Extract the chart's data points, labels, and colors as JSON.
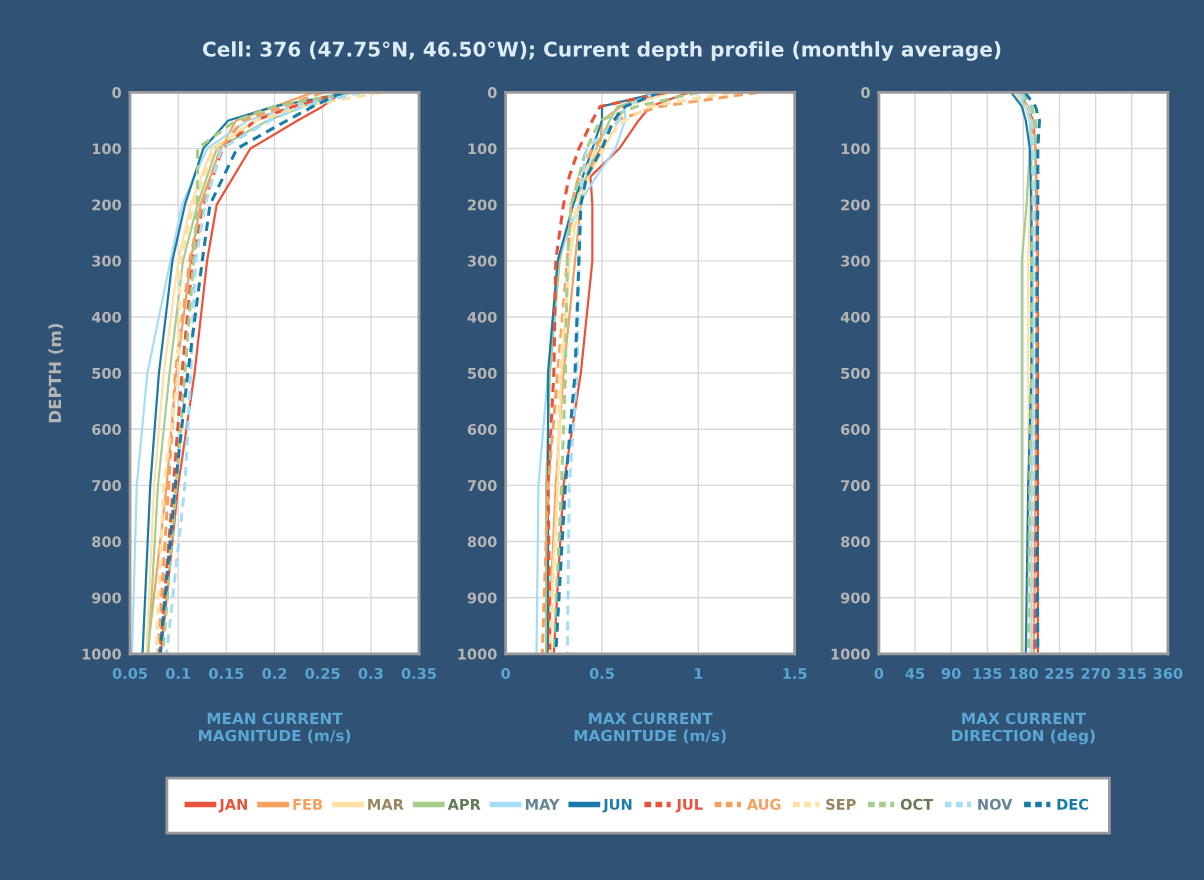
{
  "chart_data": [
    {
      "type": "line",
      "title": "Cell: 376 (47.75°N, 46.50°W); Current depth profile (monthly average)",
      "xlabel": "MEAN CURRENT\nMAGNITUDE (m/s)",
      "ylabel": "DEPTH (m)",
      "xlim": [
        0.05,
        0.35
      ],
      "xticks": [
        0.05,
        0.1,
        0.15,
        0.2,
        0.25,
        0.3,
        0.35
      ],
      "ylim": [
        1000,
        0
      ],
      "yticks": [
        0,
        100,
        200,
        300,
        400,
        500,
        600,
        700,
        800,
        900,
        1000
      ],
      "grid": true,
      "legend": "bottom",
      "series": [
        {
          "name": "JAN",
          "color": "#e8533a",
          "line_style": "solid",
          "x": [
            0.27,
            0.25,
            0.224,
            0.175,
            0.14,
            0.13,
            0.117,
            0.1,
            0.082
          ],
          "values": [
            0,
            25,
            50,
            100,
            200,
            300,
            500,
            700,
            1000
          ]
        },
        {
          "name": "FEB",
          "color": "#f5a05f",
          "line_style": "solid",
          "x": [
            0.24,
            0.2,
            0.16,
            0.144,
            0.123,
            0.113,
            0.098,
            0.088,
            0.068
          ],
          "values": [
            0,
            25,
            50,
            100,
            200,
            300,
            500,
            700,
            1000
          ]
        },
        {
          "name": "MAR",
          "color": "#fde0a3",
          "line_style": "solid",
          "x": [
            0.27,
            0.22,
            0.18,
            0.135,
            0.113,
            0.1,
            0.085,
            0.075,
            0.067
          ],
          "values": [
            0,
            25,
            50,
            100,
            200,
            300,
            500,
            700,
            1000
          ]
        },
        {
          "name": "APR",
          "color": "#a8cc8c",
          "line_style": "solid",
          "x": [
            0.27,
            0.23,
            0.193,
            0.14,
            0.12,
            0.105,
            0.091,
            0.079,
            0.069
          ],
          "values": [
            0,
            25,
            50,
            100,
            200,
            300,
            500,
            700,
            1000
          ]
        },
        {
          "name": "MAY",
          "color": "#a6dcf5",
          "line_style": "solid",
          "x": [
            0.28,
            0.22,
            0.172,
            0.13,
            0.104,
            0.092,
            0.068,
            0.057,
            0.052
          ],
          "values": [
            0,
            25,
            50,
            100,
            200,
            300,
            500,
            700,
            1000
          ]
        },
        {
          "name": "JUN",
          "color": "#1b7ba8",
          "line_style": "solid",
          "x": [
            0.28,
            0.2,
            0.152,
            0.126,
            0.107,
            0.094,
            0.08,
            0.071,
            0.063
          ],
          "values": [
            0,
            25,
            50,
            100,
            200,
            300,
            500,
            700,
            1000
          ]
        },
        {
          "name": "JUL",
          "color": "#e8533a",
          "line_style": "dashed",
          "x": [
            0.27,
            0.22,
            0.18,
            0.146,
            0.126,
            0.115,
            0.104,
            0.095,
            0.081
          ],
          "values": [
            0,
            25,
            50,
            100,
            200,
            300,
            500,
            700,
            1000
          ]
        },
        {
          "name": "AUG",
          "color": "#f5a05f",
          "line_style": "dashed",
          "x": [
            0.25,
            0.21,
            0.167,
            0.144,
            0.124,
            0.112,
            0.097,
            0.09,
            0.079
          ],
          "values": [
            0,
            25,
            50,
            100,
            200,
            300,
            500,
            700,
            1000
          ]
        },
        {
          "name": "SEP",
          "color": "#fde0a3",
          "line_style": "dashed",
          "x": [
            0.31,
            0.23,
            0.18,
            0.137,
            0.116,
            0.102,
            0.1,
            0.085,
            0.077
          ],
          "values": [
            0,
            25,
            50,
            100,
            200,
            300,
            500,
            700,
            1000
          ]
        },
        {
          "name": "OCT",
          "color": "#a8cc8c",
          "line_style": "dashed",
          "x": [
            0.28,
            0.2,
            0.16,
            0.12,
            0.12,
            0.116,
            0.107,
            0.098,
            0.084
          ],
          "values": [
            0,
            25,
            50,
            100,
            200,
            300,
            500,
            700,
            1000
          ]
        },
        {
          "name": "NOV",
          "color": "#a6dcf5",
          "line_style": "dashed",
          "x": [
            0.29,
            0.23,
            0.195,
            0.145,
            0.128,
            0.118,
            0.113,
            0.107,
            0.088
          ],
          "values": [
            0,
            25,
            50,
            100,
            200,
            300,
            500,
            700,
            1000
          ]
        },
        {
          "name": "DEC",
          "color": "#1b7ba8",
          "line_style": "dashed",
          "x": [
            0.27,
            0.24,
            0.213,
            0.161,
            0.133,
            0.125,
            0.11,
            0.097,
            0.081
          ],
          "values": [
            0,
            25,
            50,
            100,
            200,
            300,
            500,
            700,
            1000
          ]
        }
      ]
    },
    {
      "type": "line",
      "xlabel": "MAX CURRENT\nMAGNITUDE (m/s)",
      "xlim": [
        0,
        1.5
      ],
      "xticks": [
        0,
        0.5,
        1,
        1.5
      ],
      "ylim": [
        1000,
        0
      ],
      "yticks": [
        0,
        100,
        200,
        300,
        400,
        500,
        600,
        700,
        800,
        900,
        1000
      ],
      "grid": true,
      "series": [
        {
          "color": "#e8533a",
          "line_style": "solid",
          "x": [
            0.95,
            0.75,
            0.69,
            0.59,
            0.44,
            0.45,
            0.45,
            0.39,
            0.3,
            0.25
          ],
          "values": [
            0,
            25,
            50,
            100,
            150,
            200,
            300,
            500,
            700,
            1000
          ]
        },
        {
          "color": "#f5a05f",
          "line_style": "solid",
          "x": [
            0.81,
            0.6,
            0.5,
            0.49,
            0.42,
            0.39,
            0.36,
            0.3,
            0.26,
            0.22
          ],
          "values": [
            0,
            25,
            50,
            100,
            150,
            200,
            300,
            500,
            700,
            1000
          ]
        },
        {
          "color": "#fde0a3",
          "line_style": "solid",
          "x": [
            0.86,
            0.62,
            0.59,
            0.51,
            0.43,
            0.38,
            0.33,
            0.29,
            0.27,
            0.22
          ],
          "values": [
            0,
            25,
            50,
            100,
            150,
            200,
            300,
            500,
            700,
            1000
          ]
        },
        {
          "color": "#a8cc8c",
          "line_style": "solid",
          "x": [
            0.8,
            0.58,
            0.54,
            0.47,
            0.42,
            0.35,
            0.28,
            0.23,
            0.21,
            0.21
          ],
          "values": [
            0,
            25,
            50,
            100,
            150,
            200,
            300,
            500,
            700,
            1000
          ]
        },
        {
          "color": "#a6dcf5",
          "line_style": "solid",
          "x": [
            0.76,
            0.62,
            0.62,
            0.57,
            0.47,
            0.38,
            0.27,
            0.22,
            0.17,
            0.16
          ],
          "values": [
            0,
            25,
            50,
            100,
            150,
            200,
            300,
            500,
            700,
            1000
          ]
        },
        {
          "color": "#1b7ba8",
          "line_style": "solid",
          "x": [
            0.8,
            0.5,
            0.5,
            0.45,
            0.4,
            0.35,
            0.27,
            0.22,
            0.22,
            0.22
          ],
          "values": [
            0,
            25,
            50,
            100,
            150,
            200,
            300,
            500,
            700,
            1000
          ]
        },
        {
          "color": "#e8533a",
          "line_style": "dashed",
          "x": [
            0.83,
            0.49,
            0.45,
            0.38,
            0.33,
            0.3,
            0.26,
            0.25,
            0.22,
            0.23
          ],
          "values": [
            0,
            25,
            50,
            100,
            150,
            200,
            300,
            500,
            700,
            1000
          ]
        },
        {
          "color": "#f5a05f",
          "line_style": "dashed",
          "x": [
            1.31,
            0.8,
            0.57,
            0.45,
            0.38,
            0.34,
            0.32,
            0.27,
            0.22,
            0.19
          ],
          "values": [
            0,
            25,
            50,
            100,
            150,
            200,
            300,
            500,
            700,
            1000
          ]
        },
        {
          "color": "#fde0a3",
          "line_style": "dashed",
          "x": [
            1.17,
            0.75,
            0.62,
            0.47,
            0.4,
            0.37,
            0.33,
            0.28,
            0.27,
            0.23
          ],
          "values": [
            0,
            25,
            50,
            100,
            150,
            200,
            300,
            500,
            700,
            1000
          ]
        },
        {
          "color": "#a8cc8c",
          "line_style": "dashed",
          "x": [
            1.0,
            0.68,
            0.49,
            0.42,
            0.38,
            0.34,
            0.32,
            0.31,
            0.29,
            0.25
          ],
          "values": [
            0,
            25,
            50,
            100,
            150,
            200,
            300,
            500,
            700,
            1000
          ]
        },
        {
          "color": "#a6dcf5",
          "line_style": "dashed",
          "x": [
            0.78,
            0.62,
            0.59,
            0.42,
            0.4,
            0.39,
            0.38,
            0.37,
            0.33,
            0.32
          ],
          "values": [
            0,
            25,
            50,
            100,
            150,
            200,
            300,
            500,
            700,
            1000
          ]
        },
        {
          "color": "#1b7ba8",
          "line_style": "dashed",
          "x": [
            0.8,
            0.62,
            0.56,
            0.5,
            0.42,
            0.39,
            0.38,
            0.36,
            0.31,
            0.26
          ],
          "values": [
            0,
            25,
            50,
            100,
            150,
            200,
            300,
            500,
            700,
            1000
          ]
        }
      ]
    },
    {
      "type": "line",
      "xlabel": "MAX CURRENT\nDIRECTION (deg)",
      "xlim": [
        0,
        360
      ],
      "xticks": [
        0,
        45,
        90,
        135,
        180,
        225,
        270,
        315,
        360
      ],
      "ylim": [
        1000,
        0
      ],
      "yticks": [
        0,
        100,
        200,
        300,
        400,
        500,
        600,
        700,
        800,
        900,
        1000
      ],
      "grid": true,
      "series": [
        {
          "color": "#e8533a",
          "line_style": "solid",
          "x": [
            175,
            185,
            192,
            195,
            197,
            198,
            198,
            198,
            198
          ],
          "values": [
            0,
            25,
            50,
            100,
            200,
            300,
            500,
            700,
            1000
          ]
        },
        {
          "color": "#f5a05f",
          "line_style": "solid",
          "x": [
            172,
            183,
            190,
            195,
            196,
            197,
            196,
            195,
            193
          ],
          "values": [
            0,
            25,
            50,
            100,
            200,
            300,
            500,
            700,
            1000
          ]
        },
        {
          "color": "#fde0a3",
          "line_style": "solid",
          "x": [
            170,
            182,
            188,
            190,
            188,
            186,
            186,
            187,
            188
          ],
          "values": [
            0,
            25,
            50,
            100,
            200,
            300,
            500,
            700,
            1000
          ]
        },
        {
          "color": "#a8cc8c",
          "line_style": "solid",
          "x": [
            172,
            185,
            190,
            188,
            184,
            178,
            178,
            178,
            178
          ],
          "values": [
            0,
            25,
            50,
            100,
            200,
            300,
            500,
            700,
            1000
          ]
        },
        {
          "color": "#a6dcf5",
          "line_style": "solid",
          "x": [
            170,
            182,
            188,
            190,
            190,
            192,
            192,
            190,
            190
          ],
          "values": [
            0,
            25,
            50,
            100,
            200,
            300,
            500,
            700,
            1000
          ]
        },
        {
          "color": "#1b7ba8",
          "line_style": "solid",
          "x": [
            165,
            178,
            183,
            188,
            190,
            190,
            190,
            186,
            183
          ],
          "values": [
            0,
            25,
            50,
            100,
            200,
            300,
            500,
            700,
            1000
          ]
        },
        {
          "color": "#e8533a",
          "line_style": "dashed",
          "x": [
            175,
            185,
            190,
            192,
            194,
            196,
            196,
            196,
            194
          ],
          "values": [
            0,
            25,
            50,
            100,
            200,
            300,
            500,
            700,
            1000
          ]
        },
        {
          "color": "#f5a05f",
          "line_style": "dashed",
          "x": [
            175,
            185,
            192,
            195,
            197,
            197,
            196,
            193,
            188
          ],
          "values": [
            0,
            25,
            50,
            100,
            200,
            300,
            500,
            700,
            1000
          ]
        },
        {
          "color": "#fde0a3",
          "line_style": "dashed",
          "x": [
            172,
            183,
            190,
            192,
            192,
            193,
            192,
            190,
            188
          ],
          "values": [
            0,
            25,
            50,
            100,
            200,
            300,
            500,
            700,
            1000
          ]
        },
        {
          "color": "#a8cc8c",
          "line_style": "dashed",
          "x": [
            178,
            190,
            195,
            196,
            193,
            190,
            190,
            188,
            186
          ],
          "values": [
            0,
            25,
            50,
            100,
            200,
            300,
            500,
            700,
            1000
          ]
        },
        {
          "color": "#a6dcf5",
          "line_style": "dashed",
          "x": [
            175,
            185,
            190,
            192,
            193,
            194,
            193,
            192,
            190
          ],
          "values": [
            0,
            25,
            50,
            100,
            200,
            300,
            500,
            700,
            1000
          ]
        },
        {
          "color": "#1b7ba8",
          "line_style": "dashed",
          "x": [
            182,
            195,
            200,
            198,
            198,
            197,
            197,
            197,
            198
          ],
          "values": [
            0,
            25,
            50,
            100,
            200,
            300,
            500,
            700,
            1000
          ]
        }
      ]
    }
  ]
}
